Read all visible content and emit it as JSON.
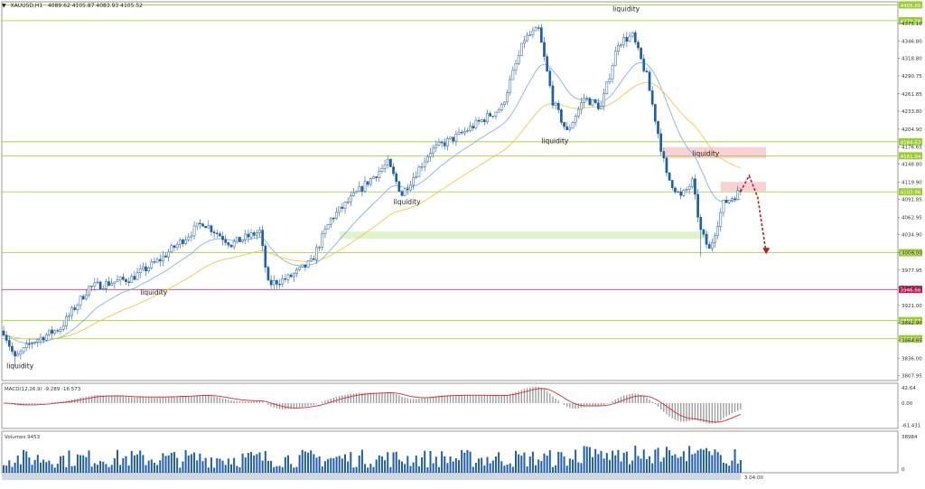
{
  "header": {
    "symbol_timeframe": "XAUUSD,H1",
    "ohlc": "4089.62 4105.87 4083.93 4105.52"
  },
  "colors": {
    "candle": "#1f5fa8",
    "h_level": "#9acd32",
    "pink_level": "#c2185b",
    "ema_fast": "#7fb3e6",
    "ema_slow": "#f2c744",
    "macd_signal": "#d32f2f",
    "macd_hist": "#9e9e9e",
    "volume": "#1f5fa8",
    "supply_zone": "#f8c9cc",
    "demand_zone": "#d9f2c4",
    "arrow": "#b22222"
  },
  "price_axis": {
    "min": 3800,
    "max": 4410,
    "ticks": [
      "4375.10",
      "4346.80",
      "4318.80",
      "4290.75",
      "4261.85",
      "4233.80",
      "4204.90",
      "4176.65",
      "4148.80",
      "4119.90",
      "4091.85",
      "4062.95",
      "4034.90",
      "4006.00",
      "3977.95",
      "3949.90",
      "3921.00",
      "3892.90",
      "3864.85",
      "3836.00",
      "3807.95"
    ],
    "tick_values": [
      4375.1,
      4346.8,
      4318.8,
      4290.75,
      4261.85,
      4233.8,
      4204.9,
      4176.65,
      4148.8,
      4119.9,
      4091.85,
      4062.95,
      4034.9,
      4006.0,
      3977.95,
      3949.9,
      3921.0,
      3892.9,
      3864.85,
      3836.0,
      3807.95
    ]
  },
  "levels": [
    {
      "price": 4405.0,
      "label": "4405.00",
      "kind": "green"
    },
    {
      "price": 4379.58,
      "label": "4379.58",
      "kind": "green"
    },
    {
      "price": 4184.62,
      "label": "4184.62",
      "kind": "green"
    },
    {
      "price": 4161.94,
      "label": "4161.94",
      "kind": "green"
    },
    {
      "price": 4103.96,
      "label": "4103.96",
      "kind": "green"
    },
    {
      "price": 4006.0,
      "label": "4006.00",
      "kind": "green"
    },
    {
      "price": 3946.68,
      "label": "3946.68",
      "kind": "pink"
    },
    {
      "price": 3896.53,
      "label": "3896.53",
      "kind": "green"
    },
    {
      "price": 3867.33,
      "label": "3867.33",
      "kind": "green"
    }
  ],
  "annotations": [
    {
      "text": "liquidity",
      "x_index": 1,
      "price": 3820
    },
    {
      "text": "liquidity",
      "x_index": 48,
      "price": 3938
    },
    {
      "text": "liquidity",
      "x_index": 137,
      "price": 4084
    },
    {
      "text": "liquidity",
      "x_index": 189,
      "price": 4182
    },
    {
      "text": "liquidity",
      "x_index": 214,
      "price": 4395
    },
    {
      "text": "liquidity",
      "x_index": 242,
      "price": 4162
    }
  ],
  "macd": {
    "label": "MACD(12,26,9) -9.289 -16.573",
    "ticks": [
      "42.64",
      "0.00",
      "-61.431"
    ],
    "tick_values": [
      42.64,
      0,
      -61.431
    ],
    "min": -70,
    "max": 55
  },
  "volume": {
    "label": "Volumes 9453",
    "ticks": [
      "38984",
      "0"
    ],
    "max": 38984
  },
  "time_axis_last_label": "3 04:00",
  "chart_data": {
    "type": "candlestick",
    "symbol": "XAUUSD",
    "timeframe": "H1",
    "series_count": 260,
    "close_path_keypoints": [
      {
        "i": 0,
        "p": 3880
      },
      {
        "i": 4,
        "p": 3835
      },
      {
        "i": 10,
        "p": 3862
      },
      {
        "i": 20,
        "p": 3885
      },
      {
        "i": 30,
        "p": 3950
      },
      {
        "i": 45,
        "p": 3965
      },
      {
        "i": 55,
        "p": 3995
      },
      {
        "i": 70,
        "p": 4055
      },
      {
        "i": 80,
        "p": 4020
      },
      {
        "i": 90,
        "p": 4040
      },
      {
        "i": 93,
        "p": 3955
      },
      {
        "i": 100,
        "p": 3965
      },
      {
        "i": 108,
        "p": 3990
      },
      {
        "i": 115,
        "p": 4060
      },
      {
        "i": 128,
        "p": 4120
      },
      {
        "i": 135,
        "p": 4150
      },
      {
        "i": 140,
        "p": 4100
      },
      {
        "i": 150,
        "p": 4170
      },
      {
        "i": 160,
        "p": 4195
      },
      {
        "i": 175,
        "p": 4240
      },
      {
        "i": 183,
        "p": 4350
      },
      {
        "i": 188,
        "p": 4365
      },
      {
        "i": 193,
        "p": 4250
      },
      {
        "i": 198,
        "p": 4200
      },
      {
        "i": 204,
        "p": 4255
      },
      {
        "i": 210,
        "p": 4240
      },
      {
        "i": 216,
        "p": 4345
      },
      {
        "i": 221,
        "p": 4355
      },
      {
        "i": 226,
        "p": 4290
      },
      {
        "i": 233,
        "p": 4130
      },
      {
        "i": 238,
        "p": 4095
      },
      {
        "i": 242,
        "p": 4120
      },
      {
        "i": 245,
        "p": 4040
      },
      {
        "i": 248,
        "p": 4010
      },
      {
        "i": 253,
        "p": 4085
      },
      {
        "i": 259,
        "p": 4105
      }
    ],
    "projection": [
      {
        "i": 262,
        "p": 4130
      },
      {
        "i": 265,
        "p": 4095
      },
      {
        "i": 268,
        "p": 4005
      }
    ],
    "zones": [
      {
        "type": "supply",
        "from_index": 232,
        "to_index": 268,
        "low": 4158,
        "high": 4176
      },
      {
        "type": "supply",
        "from_index": 252,
        "to_index": 268,
        "low": 4105,
        "high": 4120
      },
      {
        "type": "demand",
        "from_index": 118,
        "to_index": 248,
        "low": 4028,
        "high": 4040
      }
    ]
  }
}
